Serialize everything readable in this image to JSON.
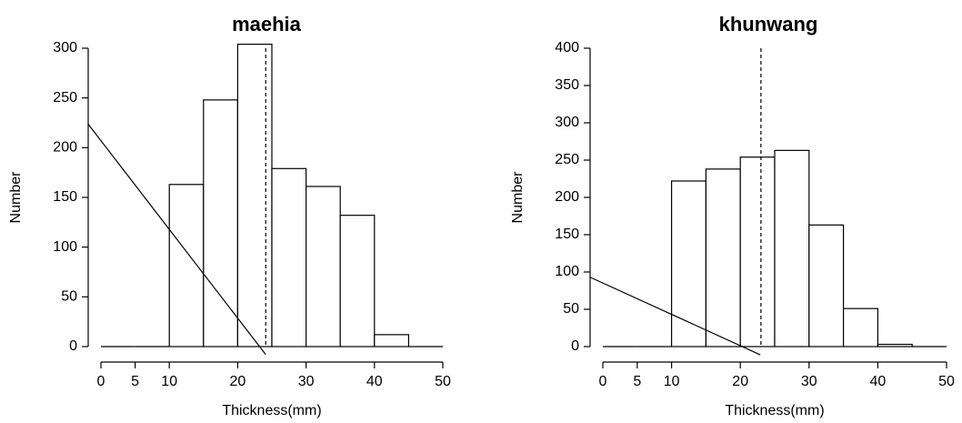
{
  "chart_data": [
    {
      "type": "histogram",
      "title": "maehia",
      "xlabel": "Thickness(mm)",
      "ylabel": "Number",
      "bins": [
        0,
        5,
        10,
        15,
        20,
        25,
        30,
        35,
        40,
        45,
        50
      ],
      "counts": [
        0,
        0,
        163,
        248,
        304,
        179,
        161,
        132,
        12,
        0
      ],
      "xlim": [
        0,
        50
      ],
      "xticks": [
        0,
        5,
        10,
        20,
        30,
        40,
        50
      ],
      "ylim": [
        0,
        300
      ],
      "yticks": [
        0,
        50,
        100,
        150,
        200,
        250,
        300
      ],
      "vline": 24.1,
      "line": {
        "x": [
          -1.9,
          24.1
        ],
        "y": [
          224,
          -8
        ]
      }
    },
    {
      "type": "histogram",
      "title": "khunwang",
      "xlabel": "Thickness(mm)",
      "ylabel": "Number",
      "bins": [
        0,
        5,
        10,
        15,
        20,
        25,
        30,
        35,
        40,
        45,
        50
      ],
      "counts": [
        0,
        0,
        222,
        238,
        254,
        263,
        163,
        51,
        3,
        0
      ],
      "xlim": [
        0,
        50
      ],
      "xticks": [
        0,
        5,
        10,
        20,
        30,
        40,
        50
      ],
      "ylim": [
        0,
        400
      ],
      "yticks": [
        0,
        50,
        100,
        150,
        200,
        250,
        300,
        350,
        400
      ],
      "vline": 23.0,
      "line": {
        "x": [
          -1.85,
          22.9
        ],
        "y": [
          93,
          -11
        ]
      }
    }
  ]
}
